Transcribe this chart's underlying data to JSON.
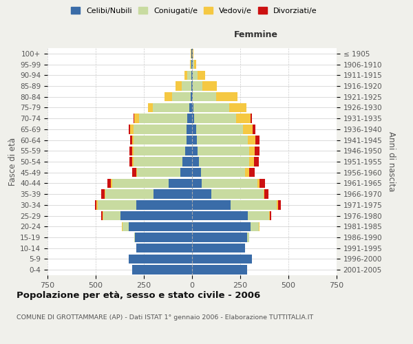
{
  "age_groups": [
    "0-4",
    "5-9",
    "10-14",
    "15-19",
    "20-24",
    "25-29",
    "30-34",
    "35-39",
    "40-44",
    "45-49",
    "50-54",
    "55-59",
    "60-64",
    "65-69",
    "70-74",
    "75-79",
    "80-84",
    "85-89",
    "90-94",
    "95-99",
    "100+"
  ],
  "birth_years": [
    "2001-2005",
    "1996-2000",
    "1991-1995",
    "1986-1990",
    "1981-1985",
    "1976-1980",
    "1971-1975",
    "1966-1970",
    "1961-1965",
    "1956-1960",
    "1951-1955",
    "1946-1950",
    "1941-1945",
    "1936-1940",
    "1931-1935",
    "1926-1930",
    "1921-1925",
    "1916-1920",
    "1911-1915",
    "1906-1910",
    "≤ 1905"
  ],
  "colors": {
    "celibi": "#3a6ca8",
    "coniugati": "#c8dba0",
    "vedovi": "#f5c842",
    "divorziati": "#cc1111"
  },
  "male": {
    "celibi": [
      310,
      330,
      290,
      295,
      330,
      370,
      290,
      200,
      120,
      60,
      50,
      35,
      30,
      30,
      25,
      15,
      8,
      5,
      4,
      2,
      2
    ],
    "coniugati": [
      0,
      0,
      0,
      5,
      30,
      90,
      200,
      250,
      295,
      225,
      255,
      270,
      275,
      275,
      250,
      190,
      95,
      50,
      20,
      6,
      3
    ],
    "vedovi": [
      0,
      0,
      0,
      0,
      5,
      5,
      5,
      5,
      5,
      5,
      5,
      5,
      5,
      15,
      25,
      25,
      40,
      30,
      15,
      4,
      2
    ],
    "divorziati": [
      0,
      0,
      0,
      0,
      0,
      5,
      10,
      15,
      20,
      20,
      15,
      15,
      10,
      10,
      5,
      0,
      0,
      0,
      0,
      0,
      0
    ]
  },
  "female": {
    "celibi": [
      285,
      310,
      275,
      285,
      305,
      290,
      200,
      100,
      50,
      45,
      35,
      30,
      25,
      20,
      10,
      8,
      5,
      5,
      4,
      2,
      2
    ],
    "coniugati": [
      0,
      0,
      0,
      10,
      40,
      110,
      240,
      270,
      290,
      230,
      260,
      265,
      265,
      245,
      220,
      185,
      120,
      50,
      25,
      8,
      2
    ],
    "vedovi": [
      0,
      0,
      0,
      0,
      5,
      5,
      5,
      5,
      10,
      20,
      25,
      30,
      40,
      50,
      75,
      90,
      110,
      75,
      40,
      12,
      4
    ],
    "divorziati": [
      0,
      0,
      0,
      0,
      0,
      5,
      15,
      20,
      30,
      30,
      25,
      25,
      20,
      15,
      5,
      0,
      0,
      0,
      0,
      0,
      0
    ]
  },
  "xlim": 750,
  "title": "Popolazione per età, sesso e stato civile - 2006",
  "subtitle": "COMUNE DI GROTTAMMARE (AP) - Dati ISTAT 1° gennaio 2006 - Elaborazione TUTTITALIA.IT",
  "ylabel_left": "Fasce di età",
  "ylabel_right": "Anni di nascita",
  "xlabel_right": "Femmine",
  "legend_labels": [
    "Celibi/Nubili",
    "Coniugati/e",
    "Vedovi/e",
    "Divorziati/e"
  ],
  "bg_color": "#f0f0eb",
  "plot_bg": "#ffffff"
}
